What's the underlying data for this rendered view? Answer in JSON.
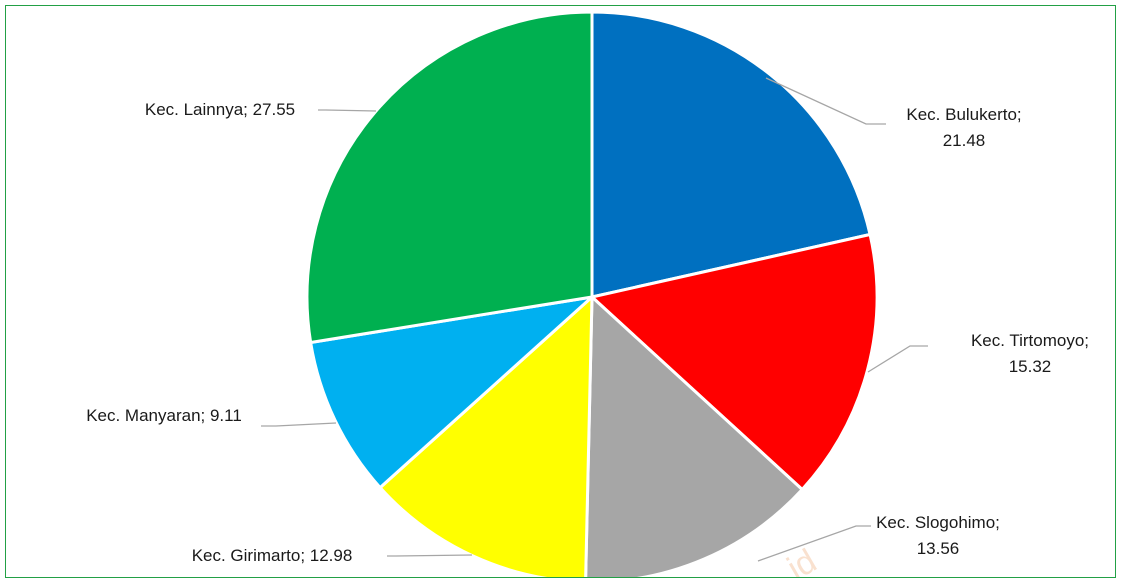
{
  "chart_data": {
    "type": "pie",
    "title": "",
    "start_category": "Kec. Bulukerto",
    "direction": "clockwise",
    "categories": [
      "Kec. Bulukerto",
      "Kec. Tirtomoyo",
      "Kec. Slogohimo",
      "Kec. Girimarto",
      "Kec. Manyaran",
      "Kec. Lainnya"
    ],
    "values": [
      21.48,
      15.32,
      13.56,
      12.98,
      9.11,
      27.55
    ],
    "labels": [
      {
        "line1": "Kec. Bulukerto;",
        "line2": "21.48"
      },
      {
        "line1": "Kec. Tirtomoyo;",
        "line2": "15.32"
      },
      {
        "line1": "Kec. Slogohimo;",
        "line2": "13.56"
      },
      {
        "line1": "Kec. Girimarto; 12.98",
        "line2": ""
      },
      {
        "line1": "Kec. Manyaran; 9.11",
        "line2": ""
      },
      {
        "line1": "Kec. Lainnya; 27.55",
        "line2": ""
      }
    ],
    "colors": [
      "#0070c0",
      "#ff0000",
      "#a6a6a6",
      "#ffff00",
      "#00b0f0",
      "#00b050"
    ],
    "border_color": "#22a045"
  },
  "watermark": {
    "text": "id"
  }
}
